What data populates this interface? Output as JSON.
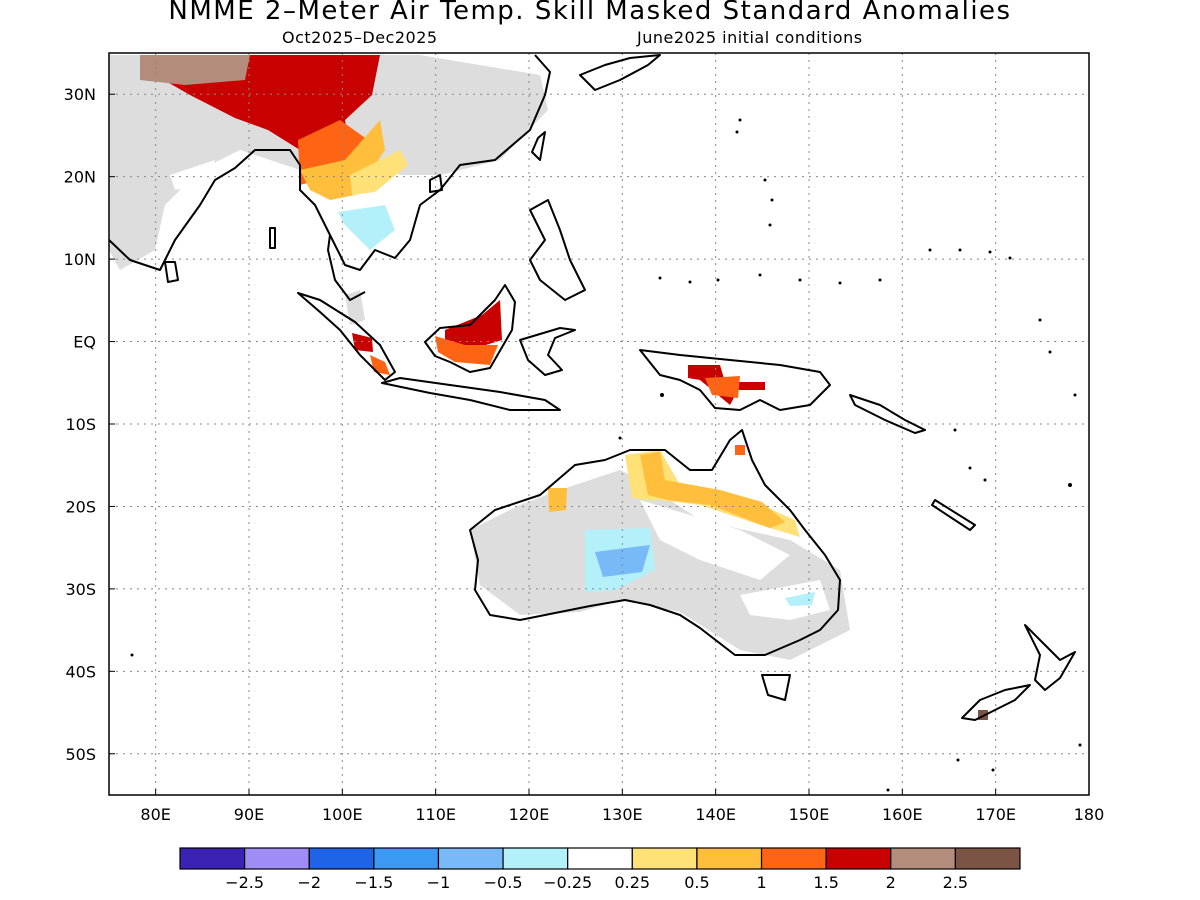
{
  "title": "NMME 2–Meter Air Temp. Skill Masked Standard Anomalies",
  "subtitle_left": "Oct2025–Dec2025",
  "subtitle_right": "June2025 initial conditions",
  "lon_range": [
    75,
    180
  ],
  "lat_range": [
    -55,
    35
  ],
  "lon_ticks": [
    {
      "value": 80,
      "label": "80E"
    },
    {
      "value": 90,
      "label": "90E"
    },
    {
      "value": 100,
      "label": "100E"
    },
    {
      "value": 110,
      "label": "110E"
    },
    {
      "value": 120,
      "label": "120E"
    },
    {
      "value": 130,
      "label": "130E"
    },
    {
      "value": 140,
      "label": "140E"
    },
    {
      "value": 150,
      "label": "150E"
    },
    {
      "value": 160,
      "label": "160E"
    },
    {
      "value": 170,
      "label": "170E"
    },
    {
      "value": 180,
      "label": "180"
    }
  ],
  "lat_ticks": [
    {
      "value": 30,
      "label": "30N"
    },
    {
      "value": 20,
      "label": "20N"
    },
    {
      "value": 10,
      "label": "10N"
    },
    {
      "value": 0,
      "label": "EQ"
    },
    {
      "value": -10,
      "label": "10S"
    },
    {
      "value": -20,
      "label": "20S"
    },
    {
      "value": -30,
      "label": "30S"
    },
    {
      "value": -40,
      "label": "40S"
    },
    {
      "value": -50,
      "label": "50S"
    }
  ],
  "grid": "dotted",
  "legend": {
    "colors": [
      "#3b22b4",
      "#9f8cf5",
      "#1f64e6",
      "#3c98f2",
      "#78b9f7",
      "#b4f0fa",
      "#ffffff",
      "#ffe178",
      "#ffbe3c",
      "#ff6414",
      "#c80000",
      "#b48c7c",
      "#7c5446"
    ],
    "labels": [
      "−2.5",
      "−2",
      "−1.5",
      "−1",
      "−0.5",
      "−0.25",
      "0.25",
      "0.5",
      "1",
      "1.5",
      "2",
      "2.5"
    ]
  }
}
